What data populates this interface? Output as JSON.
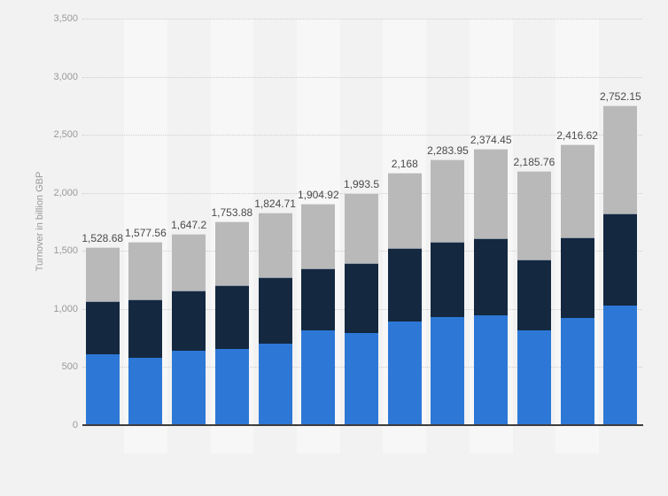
{
  "page": {
    "background": "#f2f2f2"
  },
  "chart_data": {
    "type": "bar",
    "stacked": true,
    "orientation": "vertical",
    "title": "",
    "xlabel": "",
    "ylabel": "Turnover in billion GBP",
    "ylim": [
      0,
      3500
    ],
    "ytick_interval": 500,
    "ytick_labels": [
      "0",
      "500",
      "1,000",
      "1,500",
      "2,000",
      "2,500",
      "3,000",
      "3,500"
    ],
    "grid": "horizontal-dotted",
    "legend_position": "none",
    "x_tick_labels_visible": false,
    "categories": [
      "",
      "",
      "",
      "",
      "",
      "",
      "",
      "",
      "",
      "",
      "",
      "",
      ""
    ],
    "series": [
      {
        "name": "series-1-bottom",
        "color": "#2d78d6",
        "values": [
          607,
          578,
          636,
          650,
          700,
          815,
          790,
          890,
          930,
          940,
          815,
          920,
          1028
        ]
      },
      {
        "name": "series-2-middle",
        "color": "#142840",
        "values": [
          458,
          500,
          524,
          550,
          569,
          535,
          601,
          633,
          649,
          669,
          611,
          692,
          795
        ]
      },
      {
        "name": "series-3-top",
        "color": "#b9b9b9",
        "values": [
          463.68,
          499.56,
          487.2,
          553.88,
          555.71,
          554.92,
          602.5,
          645,
          704.95,
          765.45,
          759.76,
          804.62,
          929.15
        ]
      }
    ],
    "totals": [
      1528.68,
      1577.56,
      1647.2,
      1753.88,
      1824.71,
      1904.92,
      1993.5,
      2168,
      2283.95,
      2374.45,
      2185.76,
      2416.62,
      2752.15
    ],
    "total_labels": [
      "1,528.68",
      "1,577.56",
      "1,647.2",
      "1,753.88",
      "1,824.71",
      "1,904.92",
      "1,993.5",
      "2,168",
      "2,283.95",
      "2,374.45",
      "2,185.76",
      "2,416.62",
      "2,752.15"
    ]
  },
  "colors": {
    "background": "#f2f2f2",
    "plot_band": "#f7f7f7",
    "gridline": "#cdcdcd",
    "axis_line": "#3d3d3d",
    "tick_text": "#999999",
    "value_text": "#4a4a4a"
  }
}
